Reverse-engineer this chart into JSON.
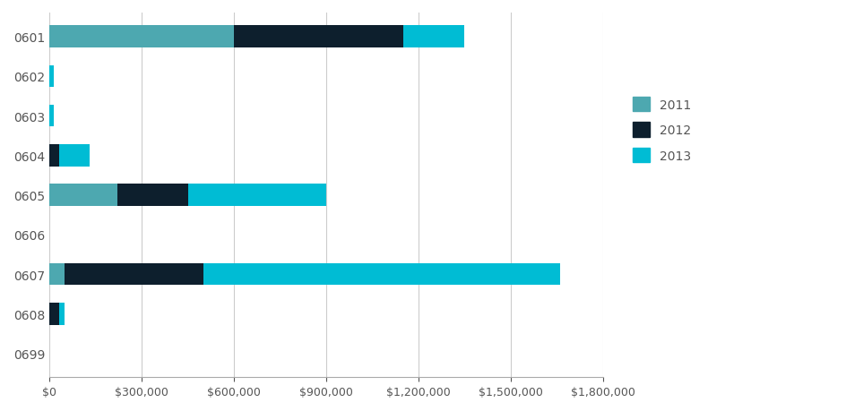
{
  "categories": [
    "0601",
    "0602",
    "0603",
    "0604",
    "0605",
    "0606",
    "0607",
    "0608",
    "0699"
  ],
  "series": {
    "2011": [
      600000,
      0,
      0,
      0,
      220000,
      0,
      50000,
      0,
      0
    ],
    "2012": [
      550000,
      0,
      0,
      30000,
      230000,
      0,
      450000,
      30000,
      0
    ],
    "2013": [
      200000,
      15000,
      15000,
      100000,
      450000,
      0,
      1160000,
      20000,
      0
    ]
  },
  "colors": {
    "2011": "#4DA8B0",
    "2012": "#0D1F2D",
    "2013": "#00BCD4"
  },
  "legend_labels": [
    "2011",
    "2012",
    "2013"
  ],
  "xlim": [
    0,
    1800000
  ],
  "xticks": [
    0,
    300000,
    600000,
    900000,
    1200000,
    1500000,
    1800000
  ],
  "background_color": "#ffffff",
  "grid_color": "#cccccc",
  "bar_height": 0.55,
  "figsize": [
    9.45,
    4.6
  ],
  "dpi": 100
}
